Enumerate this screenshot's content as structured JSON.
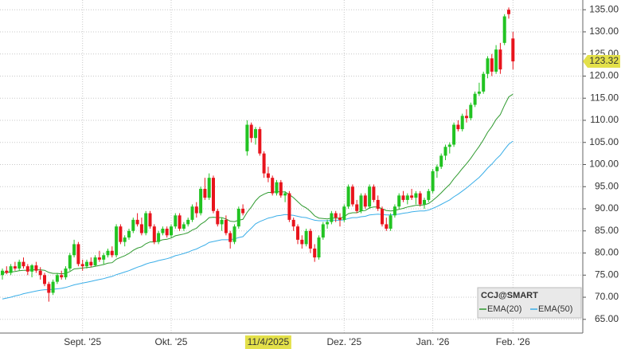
{
  "chart_data": {
    "type": "candlestick",
    "title": "CCJ@SMART",
    "categories": [
      null,
      null,
      null,
      null,
      null,
      null,
      null,
      null,
      null,
      null,
      null,
      null,
      null,
      null,
      null,
      null,
      null,
      null,
      null,
      "Sept. '25",
      null,
      null,
      null,
      null,
      null,
      null,
      null,
      null,
      null,
      null,
      null,
      null,
      null,
      null,
      null,
      null,
      null,
      null,
      null,
      null,
      "Okt. '25",
      null,
      null,
      null,
      null,
      null,
      null,
      null,
      null,
      null,
      null,
      null,
      null,
      null,
      null,
      null,
      null,
      null,
      null,
      null,
      null,
      null,
      null,
      "11/4/2025",
      null,
      null,
      null,
      null,
      null,
      null,
      null,
      null,
      null,
      null,
      null,
      null,
      null,
      null,
      null,
      null,
      null,
      "Dez. '25",
      null,
      null,
      null,
      null,
      null,
      null,
      null,
      null,
      null,
      null,
      null,
      null,
      null,
      null,
      null,
      null,
      null,
      null,
      null,
      null,
      "Jan. '26",
      null,
      null,
      null,
      null,
      null,
      null,
      null,
      null,
      null,
      null,
      null,
      null,
      null,
      null,
      null,
      null,
      null,
      null,
      "Feb. '26"
    ],
    "open": [
      75.0,
      76.0,
      75.5,
      77.0,
      76.5,
      78.0,
      77.0,
      75.8,
      77.2,
      76.0,
      75.0,
      73.0,
      71.0,
      73.5,
      75.0,
      74.5,
      76.5,
      79.5,
      82.0,
      77.5,
      77.0,
      78.0,
      77.2,
      79.0,
      78.5,
      79.5,
      80.5,
      79.5,
      86.0,
      82.5,
      83.5,
      85.0,
      87.5,
      86.5,
      84.5,
      89.0,
      86.0,
      82.5,
      84.5,
      85.5,
      84.0,
      86.0,
      88.5,
      85.5,
      86.5,
      87.5,
      90.5,
      89.0,
      94.5,
      92.5,
      97.0,
      89.5,
      86.5,
      87.5,
      84.5,
      82.5,
      86.0,
      90.0,
      103.0,
      109.0,
      106.0,
      108.0,
      102.5,
      98.0,
      97.0,
      93.5,
      96.0,
      93.0,
      93.5,
      87.5,
      86.0,
      83.0,
      82.0,
      85.0,
      81.0,
      79.0,
      83.5,
      86.5,
      87.0,
      89.0,
      88.0,
      87.5,
      90.5,
      95.0,
      91.0,
      89.5,
      93.0,
      90.5,
      95.0,
      92.0,
      90.0,
      86.5,
      85.5,
      88.5,
      90.5,
      93.0,
      92.0,
      93.0,
      92.5,
      93.5,
      91.0,
      92.0,
      94.0,
      98.5,
      99.5,
      102.0,
      104.0,
      104.5,
      109.0,
      108.0,
      111.0,
      110.5,
      113.5,
      116.0,
      116.5,
      120.5,
      124.0,
      121.0,
      126.0,
      127.5,
      135.0,
      128.5
    ],
    "high": [
      76.5,
      77.0,
      77.5,
      78.0,
      78.5,
      79.0,
      77.5,
      77.5,
      78.0,
      76.8,
      75.5,
      73.5,
      74.0,
      75.5,
      76.0,
      77.0,
      80.0,
      83.0,
      82.5,
      78.5,
      78.5,
      79.0,
      79.5,
      80.5,
      80.0,
      81.0,
      81.5,
      86.5,
      86.5,
      84.0,
      85.5,
      88.0,
      89.0,
      88.0,
      89.5,
      89.5,
      86.5,
      85.0,
      86.0,
      86.0,
      86.5,
      89.0,
      89.0,
      87.0,
      88.0,
      91.0,
      91.5,
      95.0,
      97.0,
      98.0,
      97.5,
      90.0,
      88.0,
      88.5,
      85.0,
      86.5,
      90.5,
      91.0,
      110.0,
      109.5,
      108.5,
      108.5,
      103.0,
      99.5,
      97.5,
      96.5,
      96.5,
      94.0,
      94.0,
      88.0,
      86.5,
      84.0,
      85.5,
      85.5,
      82.0,
      84.0,
      87.0,
      87.5,
      89.5,
      89.5,
      89.0,
      91.0,
      95.5,
      95.5,
      92.0,
      93.5,
      93.5,
      95.5,
      95.5,
      93.0,
      90.5,
      88.0,
      89.0,
      91.0,
      93.5,
      94.0,
      93.5,
      94.5,
      94.0,
      94.0,
      92.5,
      94.5,
      99.0,
      100.0,
      102.5,
      104.5,
      105.0,
      109.5,
      110.0,
      111.5,
      112.5,
      114.0,
      116.5,
      118.5,
      121.0,
      124.5,
      125.0,
      127.0,
      127.5,
      134.0,
      135.5,
      130.0
    ],
    "low": [
      74.0,
      75.2,
      75.0,
      76.0,
      76.0,
      76.5,
      75.0,
      74.5,
      75.5,
      74.0,
      72.5,
      69.0,
      70.5,
      73.0,
      74.0,
      74.0,
      76.0,
      79.0,
      77.0,
      76.0,
      76.5,
      76.8,
      77.0,
      78.0,
      77.5,
      79.0,
      79.0,
      79.0,
      82.0,
      81.5,
      83.0,
      84.5,
      86.0,
      84.0,
      84.0,
      85.5,
      82.0,
      82.0,
      84.0,
      83.5,
      83.5,
      85.5,
      85.0,
      85.0,
      86.0,
      87.0,
      88.0,
      88.5,
      92.0,
      92.0,
      89.0,
      86.0,
      85.0,
      84.0,
      81.0,
      82.0,
      85.5,
      88.5,
      102.0,
      105.0,
      104.5,
      102.0,
      97.0,
      96.0,
      93.0,
      93.0,
      92.5,
      91.5,
      87.0,
      85.0,
      82.0,
      81.0,
      81.5,
      80.0,
      78.0,
      78.5,
      83.0,
      85.5,
      86.5,
      87.0,
      86.0,
      87.0,
      90.0,
      90.5,
      89.0,
      89.0,
      90.0,
      90.0,
      91.5,
      89.5,
      86.0,
      85.0,
      85.0,
      88.0,
      90.0,
      91.5,
      91.0,
      92.0,
      91.0,
      90.5,
      90.0,
      91.5,
      93.5,
      97.0,
      99.0,
      101.0,
      102.5,
      104.0,
      107.5,
      107.5,
      109.5,
      110.0,
      113.0,
      115.5,
      116.0,
      119.5,
      120.0,
      120.5,
      120.5,
      127.0,
      133.0,
      121.5
    ],
    "close": [
      76.0,
      75.5,
      77.0,
      76.5,
      78.0,
      77.0,
      75.8,
      77.2,
      76.0,
      75.0,
      73.0,
      71.0,
      73.5,
      75.0,
      74.5,
      76.5,
      79.5,
      82.0,
      77.5,
      77.0,
      78.0,
      77.2,
      79.0,
      78.5,
      79.5,
      80.5,
      79.5,
      86.0,
      82.5,
      83.5,
      85.0,
      87.5,
      86.5,
      84.5,
      89.0,
      86.0,
      82.5,
      84.5,
      85.5,
      84.0,
      86.0,
      88.5,
      85.5,
      86.5,
      87.5,
      90.5,
      89.0,
      94.5,
      92.5,
      97.0,
      89.5,
      86.5,
      87.5,
      84.5,
      82.5,
      86.0,
      90.0,
      89.0,
      109.0,
      106.0,
      108.0,
      102.5,
      98.0,
      97.0,
      93.5,
      96.0,
      93.0,
      93.5,
      87.5,
      86.0,
      83.0,
      82.0,
      85.0,
      81.0,
      79.0,
      83.5,
      86.5,
      87.0,
      89.0,
      88.0,
      87.5,
      90.5,
      95.0,
      91.0,
      89.5,
      93.0,
      90.5,
      95.0,
      92.0,
      90.0,
      86.5,
      85.5,
      88.5,
      90.5,
      93.0,
      92.0,
      93.0,
      92.5,
      93.5,
      91.0,
      92.0,
      94.0,
      98.5,
      99.5,
      102.0,
      104.0,
      104.5,
      109.0,
      108.0,
      111.0,
      110.5,
      113.5,
      116.0,
      116.5,
      120.5,
      124.0,
      121.0,
      126.0,
      121.5,
      133.5,
      134.0,
      123.32
    ],
    "last_label": "123.32",
    "up_color": "#22c322",
    "down_color": "#e8141c",
    "series": [
      {
        "name": "EMA(20)",
        "color": "#2f9a2f",
        "values": [
          75.5,
          75.6,
          75.7,
          75.8,
          76.0,
          76.1,
          76.1,
          76.2,
          76.2,
          76.2,
          76.1,
          75.6,
          75.4,
          75.4,
          75.3,
          75.4,
          75.8,
          76.4,
          76.5,
          76.6,
          76.7,
          76.8,
          77.0,
          77.2,
          77.4,
          77.7,
          77.8,
          78.6,
          79.0,
          79.4,
          79.9,
          80.6,
          81.1,
          81.4,
          82.1,
          82.5,
          82.5,
          82.7,
          83.0,
          83.1,
          83.4,
          83.9,
          84.1,
          84.3,
          84.6,
          85.2,
          85.6,
          86.5,
          87.1,
          88.0,
          88.1,
          88.0,
          88.0,
          87.7,
          87.2,
          87.1,
          87.4,
          87.6,
          89.2,
          90.4,
          91.8,
          92.8,
          93.3,
          93.7,
          93.7,
          93.9,
          93.8,
          93.8,
          93.2,
          92.5,
          91.6,
          90.7,
          90.2,
          89.4,
          88.4,
          87.9,
          87.8,
          87.7,
          87.9,
          87.9,
          87.9,
          88.2,
          88.9,
          89.1,
          89.1,
          89.5,
          89.6,
          90.2,
          90.4,
          90.4,
          90.0,
          89.6,
          89.5,
          89.6,
          89.9,
          90.1,
          90.4,
          90.6,
          90.8,
          90.8,
          90.9,
          91.2,
          91.9,
          92.7,
          93.6,
          94.6,
          95.5,
          96.8,
          97.9,
          99.1,
          100.2,
          101.4,
          102.8,
          104.1,
          105.6,
          107.3,
          108.6,
          110.2,
          111.3,
          113.4,
          115.3,
          115.9
        ]
      },
      {
        "name": "EMA(50)",
        "color": "#3aaee8",
        "values": [
          69.6,
          69.8,
          70.0,
          70.3,
          70.5,
          70.8,
          71.0,
          71.2,
          71.4,
          71.6,
          71.7,
          71.7,
          71.8,
          71.9,
          72.0,
          72.2,
          72.5,
          72.8,
          73.0,
          73.2,
          73.4,
          73.6,
          73.8,
          74.0,
          74.2,
          74.5,
          74.7,
          75.1,
          75.4,
          75.7,
          76.0,
          76.4,
          76.8,
          77.1,
          77.5,
          77.8,
          78.0,
          78.3,
          78.5,
          78.7,
          79.0,
          79.4,
          79.6,
          79.9,
          80.2,
          80.6,
          80.9,
          81.4,
          81.8,
          82.4,
          82.6,
          82.8,
          83.0,
          83.0,
          83.0,
          83.2,
          83.5,
          83.7,
          84.7,
          85.6,
          86.6,
          87.1,
          87.5,
          87.9,
          88.1,
          88.4,
          88.5,
          88.7,
          88.6,
          88.5,
          88.3,
          88.1,
          88.0,
          87.7,
          87.4,
          87.3,
          87.3,
          87.3,
          87.4,
          87.4,
          87.4,
          87.5,
          87.8,
          88.0,
          88.0,
          88.2,
          88.3,
          88.6,
          88.7,
          88.8,
          88.7,
          88.6,
          88.6,
          88.7,
          88.8,
          89.0,
          89.1,
          89.3,
          89.4,
          89.5,
          89.5,
          89.7,
          90.1,
          90.5,
          91.0,
          91.5,
          92.0,
          92.7,
          93.3,
          94.0,
          94.7,
          95.5,
          96.3,
          97.1,
          98.1,
          99.2,
          100.1,
          101.2,
          102.1,
          103.4,
          104.6,
          105.3
        ]
      }
    ],
    "ylim": [
      61.9,
      137.2
    ],
    "yticks": [
      {
        "value": 65,
        "label": "65.00"
      },
      {
        "value": 70,
        "label": "70.00"
      },
      {
        "value": 75,
        "label": "75.00"
      },
      {
        "value": 80,
        "label": "80.00"
      },
      {
        "value": 85,
        "label": "85.00"
      },
      {
        "value": 90,
        "label": "90.00"
      },
      {
        "value": 95,
        "label": "95.00"
      },
      {
        "value": 100,
        "label": "100.00"
      },
      {
        "value": 105,
        "label": "105.00"
      },
      {
        "value": 110,
        "label": "110.00"
      },
      {
        "value": 115,
        "label": "115.00"
      },
      {
        "value": 120,
        "label": "120.00"
      },
      {
        "value": 125,
        "label": "125.00"
      },
      {
        "value": 130,
        "label": "130.00"
      },
      {
        "value": 135,
        "label": "135.00"
      }
    ],
    "grid": true,
    "highlight_category": 63
  }
}
